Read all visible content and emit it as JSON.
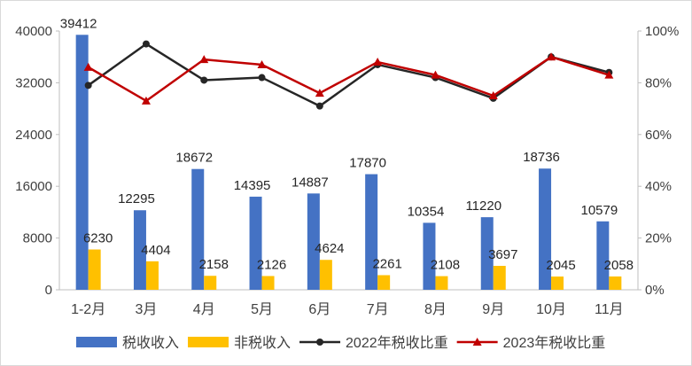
{
  "chart_data": {
    "type": "bar",
    "categories": [
      "1-2月",
      "3月",
      "4月",
      "5月",
      "6月",
      "7月",
      "8月",
      "9月",
      "10月",
      "11月"
    ],
    "series": [
      {
        "name": "税收收入",
        "kind": "bar",
        "axis": "left",
        "color": "#4472C4",
        "values": [
          39412,
          12295,
          18672,
          14395,
          14887,
          17870,
          10354,
          11220,
          18736,
          10579
        ]
      },
      {
        "name": "非税收入",
        "kind": "bar",
        "axis": "left",
        "color": "#FFC000",
        "values": [
          6230,
          4404,
          2158,
          2126,
          4624,
          2261,
          2108,
          3697,
          2045,
          2058
        ]
      },
      {
        "name": "2022年税收比重",
        "kind": "line",
        "axis": "right",
        "color": "#262626",
        "marker": "circle",
        "values": [
          79,
          95,
          81,
          82,
          71,
          87,
          82,
          74,
          90,
          84
        ]
      },
      {
        "name": "2023年税收比重",
        "kind": "line",
        "axis": "right",
        "color": "#C00000",
        "marker": "triangle",
        "values": [
          86,
          73,
          89,
          87,
          76,
          88,
          83,
          75,
          90,
          83
        ]
      }
    ],
    "y_left": {
      "min": 0,
      "max": 40000,
      "ticks": [
        0,
        8000,
        16000,
        24000,
        32000,
        40000
      ]
    },
    "y_right": {
      "min": 0,
      "max": 100,
      "ticks": [
        "0%",
        "20%",
        "40%",
        "60%",
        "80%",
        "100%"
      ]
    },
    "legend_position": "bottom",
    "grid": false
  }
}
